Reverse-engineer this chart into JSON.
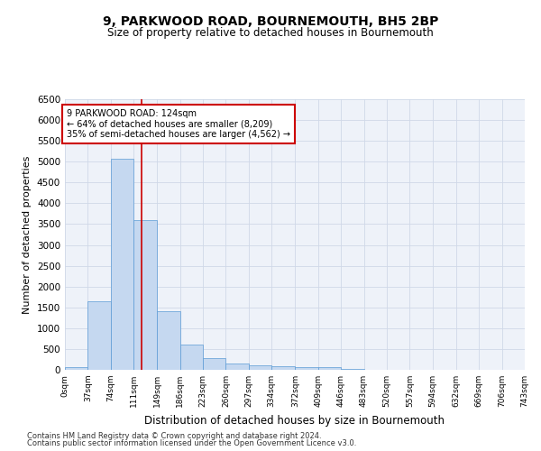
{
  "title": "9, PARKWOOD ROAD, BOURNEMOUTH, BH5 2BP",
  "subtitle": "Size of property relative to detached houses in Bournemouth",
  "xlabel": "Distribution of detached houses by size in Bournemouth",
  "ylabel": "Number of detached properties",
  "footer_line1": "Contains HM Land Registry data © Crown copyright and database right 2024.",
  "footer_line2": "Contains public sector information licensed under the Open Government Licence v3.0.",
  "bar_color": "#c5d8f0",
  "bar_edge_color": "#5b9bd5",
  "grid_color": "#d0d8e8",
  "background_color": "#eef2f9",
  "red_line_color": "#cc0000",
  "annotation_box_color": "#cc0000",
  "bin_edges": [
    0,
    37,
    74,
    111,
    149,
    186,
    223,
    260,
    297,
    334,
    372,
    409,
    446,
    483,
    520,
    557,
    594,
    632,
    669,
    706,
    743
  ],
  "bar_heights": [
    75,
    1650,
    5060,
    3590,
    1400,
    610,
    290,
    145,
    115,
    80,
    55,
    70,
    20,
    10,
    5,
    3,
    2,
    1,
    1,
    0
  ],
  "tick_labels": [
    "0sqm",
    "37sqm",
    "74sqm",
    "111sqm",
    "149sqm",
    "186sqm",
    "223sqm",
    "260sqm",
    "297sqm",
    "334sqm",
    "372sqm",
    "409sqm",
    "446sqm",
    "483sqm",
    "520sqm",
    "557sqm",
    "594sqm",
    "632sqm",
    "669sqm",
    "706sqm",
    "743sqm"
  ],
  "property_size": 124,
  "annotation_text_line1": "9 PARKWOOD ROAD: 124sqm",
  "annotation_text_line2": "← 64% of detached houses are smaller (8,209)",
  "annotation_text_line3": "35% of semi-detached houses are larger (4,562) →",
  "ylim": [
    0,
    6500
  ],
  "ytick_step": 500
}
